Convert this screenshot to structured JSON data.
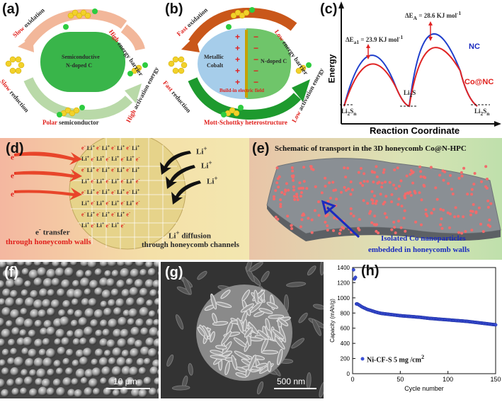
{
  "panel_a": {
    "tag": "(a)",
    "slow": "Slow",
    "oxidation": "oxidation",
    "high1": "High",
    "energy_barrier": "energy barrier",
    "slow2": "Slow",
    "reduction": "reduction",
    "high2": "High",
    "activation_energy": "activation energy",
    "core_line1": "Semiconductive",
    "core_line2": "N-doped C",
    "polar": "Polar",
    "semiconductor": "semiconductor"
  },
  "panel_b": {
    "tag": "(b)",
    "fast": "Fast",
    "oxidation": "oxidation",
    "low1": "Low",
    "energy_barrier": "energy barrier",
    "fast2": "Fast",
    "reduction": "reduction",
    "low2": "Low",
    "activation_energy": "activation energy",
    "metal_line1": "Metallic",
    "metal_line2": "Cobalt",
    "ndoped": "N-doped C",
    "field": "Build-in electric field",
    "hetero": "Mott-Schottky heterostructure"
  },
  "panel_c": {
    "tag": "(c)",
    "ylabel": "Energy",
    "xlabel": "Reaction Coordinate",
    "ea1": "ΔE",
    "ea1_sub": "a1",
    "ea1_val": " = 23.9 KJ mol",
    "ea": "ΔE",
    "ea_sub": "A",
    "ea_val": " = 28.6 KJ mol",
    "exp": "-1",
    "li2sn_left": "Li",
    "li2s": "Li",
    "li2sn_right": "Li",
    "sub2": "2",
    "sn": "S",
    "n": "n",
    "s": "S",
    "nc": "NC",
    "conc": "Co@NC",
    "colors": {
      "nc": "#1f3fcc",
      "conc": "#e02424"
    }
  },
  "panel_d": {
    "tag": "(d)",
    "eminus": "e",
    "minus": "-",
    "li": "Li",
    "plus": "+",
    "etransfer1": "e",
    "etransfer2": " transfer",
    "walls": "through honeycomb walls",
    "lidiff1": "Li",
    "lidiff2": " diffusion",
    "channels": "through honeycomb channels"
  },
  "panel_e": {
    "tag": "(e)",
    "title": "Schematic of transport in the 3D honeycomb Co@N-HPC",
    "iso1": "Isolated Co nanoparticles",
    "iso2": "embedded in honeycomb walls"
  },
  "panel_f": {
    "tag": "(f)",
    "scale": "10 μm"
  },
  "panel_g": {
    "tag": "(g)",
    "scale": "500 nm"
  },
  "panel_h": {
    "tag": "(h)",
    "legend": "Ni-CF-S 5 mg /cm",
    "legend_sup": "2"
  },
  "chart_data": [
    {
      "type": "line",
      "title": "",
      "xlabel": "Reaction Coordinate",
      "ylabel": "Energy",
      "series": [
        {
          "name": "NC",
          "annotations": [
            "ΔEa1 = 23.9 KJ mol-1",
            "ΔEA = 28.6 KJ mol-1"
          ]
        },
        {
          "name": "Co@NC"
        }
      ],
      "points": [
        "Li2Sn",
        "Li2S",
        "Li2Sn"
      ]
    },
    {
      "type": "scatter",
      "xlabel": "Cycle number",
      "ylabel": "Capacity (mAh/g)",
      "xlim": [
        0,
        150
      ],
      "ylim": [
        0,
        1400
      ],
      "xticks": [
        0,
        50,
        100,
        150
      ],
      "yticks": [
        0,
        200,
        400,
        600,
        800,
        1000,
        1200,
        1400
      ],
      "series": [
        {
          "name": "Ni-CF-S 5 mg /cm2",
          "x": [
            1,
            2,
            3,
            5,
            10,
            15,
            20,
            25,
            30,
            40,
            50,
            60,
            70,
            80,
            90,
            100,
            110,
            120,
            130,
            140,
            150
          ],
          "y": [
            1370,
            1250,
            1270,
            920,
            880,
            850,
            830,
            810,
            795,
            780,
            765,
            755,
            745,
            730,
            720,
            710,
            700,
            690,
            675,
            660,
            645
          ]
        }
      ]
    }
  ]
}
